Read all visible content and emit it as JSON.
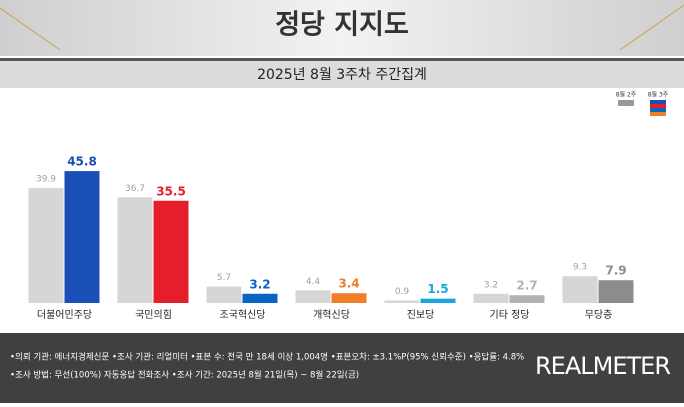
{
  "chart_data": {
    "type": "bar",
    "title": "정당 지지도",
    "subtitle": "2025년 8월 3주차 주간집계",
    "categories": [
      "더불어민주당",
      "국민의힘",
      "조국혁신당",
      "개혁신당",
      "진보당",
      "기타 정당",
      "무당층"
    ],
    "series": [
      {
        "name": "8월 2주",
        "color": "#d6d6d6",
        "values": [
          39.9,
          36.7,
          5.7,
          4.4,
          0.9,
          3.2,
          9.3
        ]
      },
      {
        "name": "8월 3주",
        "colors": [
          "#1a4fb8",
          "#e61e2b",
          "#0a64c4",
          "#f07d2a",
          "#1aa6de",
          "#b3b3b3",
          "#8c8c8c"
        ],
        "values": [
          45.8,
          35.5,
          3.2,
          3.4,
          1.5,
          2.7,
          7.9
        ]
      }
    ],
    "ylim": [
      0,
      50
    ],
    "notes": [
      "•의뢰 기관: 에너지경제신문 •조사 기관: 리얼미터 •표본 수: 전국 만 18세 이상 1,004명 •표본오차: ±3.1%P(95% 신뢰수준) •응답률: 4.8%",
      "•조사 방법: 무선(100%) 자동응답 전화조사 •조사 기간: 2025년 8월 21일(목) ~ 8월 22일(금)"
    ],
    "brand": "REALMETER"
  }
}
